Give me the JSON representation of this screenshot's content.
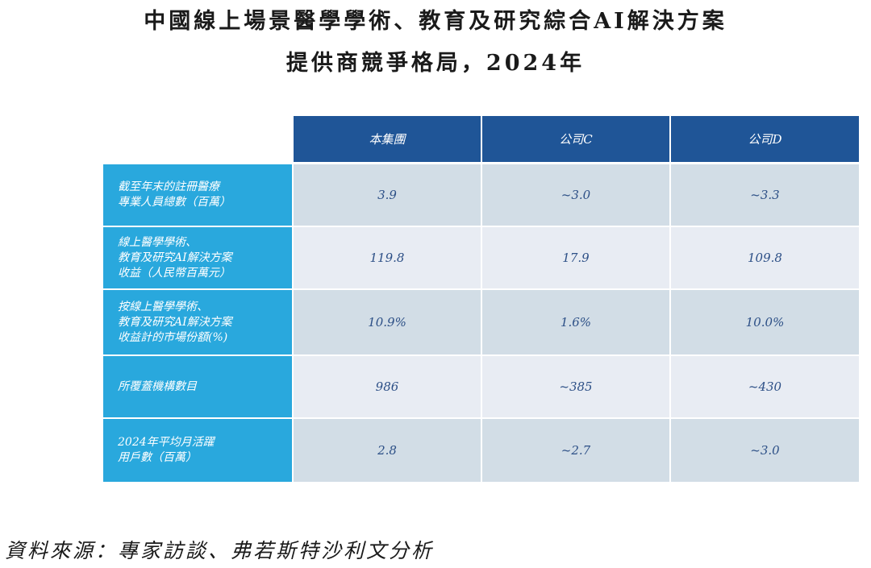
{
  "title": {
    "line1": "中國線上場景醫學學術、教育及研究綜合AI解決方案",
    "line2": "提供商競爭格局，2024年"
  },
  "table": {
    "columns": [
      "本集團",
      "公司C",
      "公司D"
    ],
    "rows": [
      {
        "label": "截至年末的註冊醫療\n專業人員總數（百萬）",
        "values": [
          "3.9",
          "~3.0",
          "~3.3"
        ]
      },
      {
        "label": "線上醫學學術、\n教育及研究AI解決方案\n收益（人民幣百萬元）",
        "values": [
          "119.8",
          "17.9",
          "109.8"
        ]
      },
      {
        "label": "按線上醫學學術、\n教育及研究AI解決方案\n收益計的市場份額(%)",
        "values": [
          "10.9%",
          "1.6%",
          "10.0%"
        ]
      },
      {
        "label": "所覆蓋機構數目",
        "values": [
          "986",
          "~385",
          "~430"
        ]
      },
      {
        "label": "2024年平均月活躍\n用戶數（百萬）",
        "values": [
          "2.8",
          "~2.7",
          "~3.0"
        ]
      }
    ]
  },
  "source": "資料來源：專家訪談、弗若斯特沙利文分析",
  "colors": {
    "header_bg": "#1f5597",
    "row_header_bg": "#29a8dd",
    "row_bg_odd": "#d2dde6",
    "row_bg_even": "#e8ecf3",
    "value_text": "#2c4f86"
  }
}
